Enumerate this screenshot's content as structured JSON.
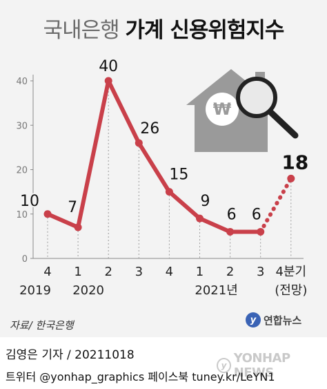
{
  "title_light": "국내은행",
  "title_bold": "가계 신용위험지수",
  "chart_data": {
    "type": "line",
    "title": "국내은행 가계 신용위험지수",
    "categories": [
      "2019 4",
      "2020 1",
      "2020 2",
      "2020 3",
      "2020 4",
      "2021 1",
      "2021 2",
      "2021 3",
      "2021 4분기(전망)"
    ],
    "values": [
      10,
      7,
      40,
      26,
      15,
      9,
      6,
      6,
      18
    ],
    "projected_last_point": true,
    "ylim": [
      0,
      40
    ],
    "yticks": [
      "0",
      "10",
      "20",
      "30",
      "40"
    ],
    "x_quarter_labels": [
      "4",
      "1",
      "2",
      "3",
      "4",
      "1",
      "2",
      "3",
      "4분기"
    ],
    "x_year_labels": [
      "2019",
      "2020",
      "2021년"
    ],
    "x_extra_label": "(전망)",
    "line_color": "#c9404a",
    "grid": false
  },
  "source": "자료/ 한국은행",
  "logo_text": "연합뉴스",
  "footer_author": "김영은 기자 / 20211018",
  "footer_social": "트위터 @yonhap_graphics  페이스북 tuney.kr/LeYN1",
  "watermark_text": "YONHAP NEWS"
}
